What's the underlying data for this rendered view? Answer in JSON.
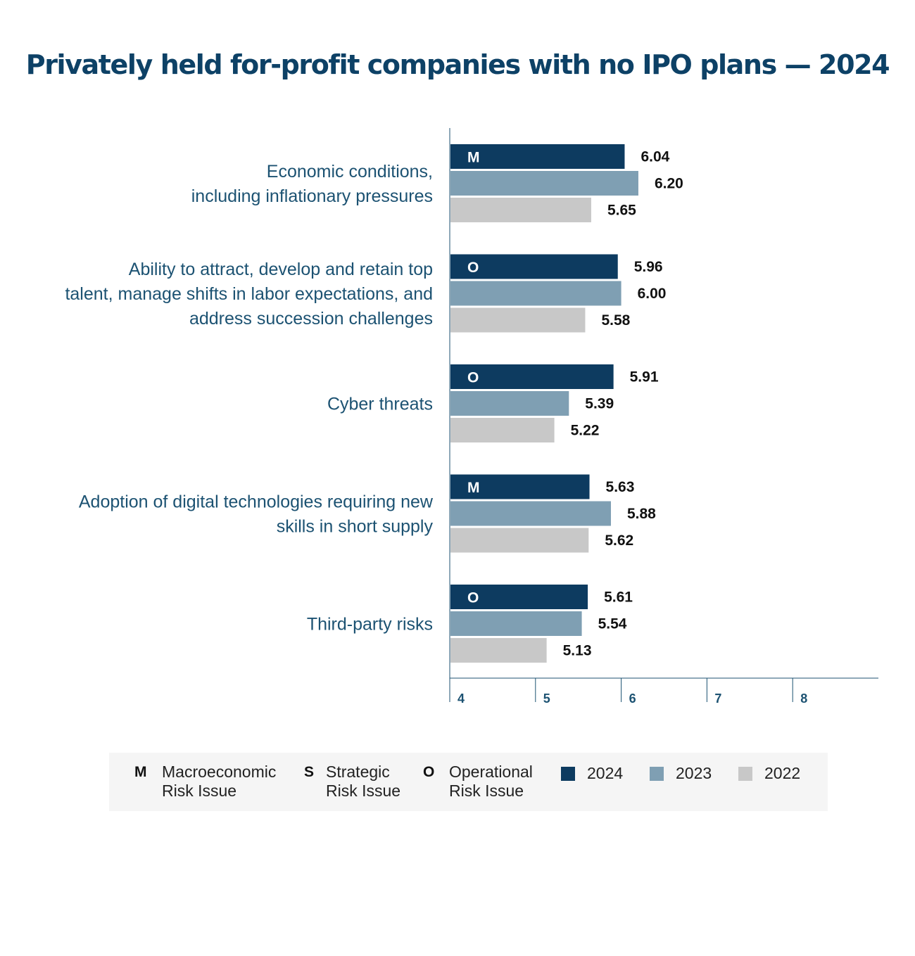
{
  "title": "Privately held for-profit companies with no IPO plans — 2024",
  "colors": {
    "y2024": "#0d3b60",
    "y2023": "#7f9fb3",
    "y2022": "#c8c8c8",
    "text": "#1c5272"
  },
  "chart_data": {
    "type": "bar",
    "orientation": "horizontal",
    "title": "Privately held for-profit companies with no IPO plans — 2024",
    "xlim": [
      4,
      9
    ],
    "x_ticks": [
      4,
      5,
      6,
      7,
      8
    ],
    "grid": false,
    "legend_placement": "bottom",
    "categories": [
      {
        "lines": [
          "Economic conditions,",
          "including inflationary pressures"
        ],
        "code": "M"
      },
      {
        "lines": [
          "Ability to attract, develop and retain top",
          "talent, manage shifts in labor expectations, and",
          "address succession challenges"
        ],
        "code": "O"
      },
      {
        "lines": [
          "Cyber threats"
        ],
        "code": "O"
      },
      {
        "lines": [
          "Adoption of digital technologies requiring new",
          "skills in short supply"
        ],
        "code": "M"
      },
      {
        "lines": [
          "Third-party risks"
        ],
        "code": "O"
      }
    ],
    "series": [
      {
        "name": "2024",
        "values": [
          "6.04",
          "5.96",
          "5.91",
          "5.63",
          "5.61"
        ]
      },
      {
        "name": "2023",
        "values": [
          "6.20",
          "6.00",
          "5.39",
          "5.88",
          "5.54"
        ]
      },
      {
        "name": "2022",
        "values": [
          "5.65",
          "5.58",
          "5.22",
          "5.62",
          "5.13"
        ]
      }
    ]
  },
  "legend": {
    "codes": [
      {
        "code": "M",
        "line1": "Macroeconomic",
        "line2": "Risk Issue"
      },
      {
        "code": "S",
        "line1": "Strategic",
        "line2": "Risk Issue"
      },
      {
        "code": "O",
        "line1": "Operational",
        "line2": "Risk Issue"
      }
    ],
    "years": [
      "2024",
      "2023",
      "2022"
    ]
  }
}
